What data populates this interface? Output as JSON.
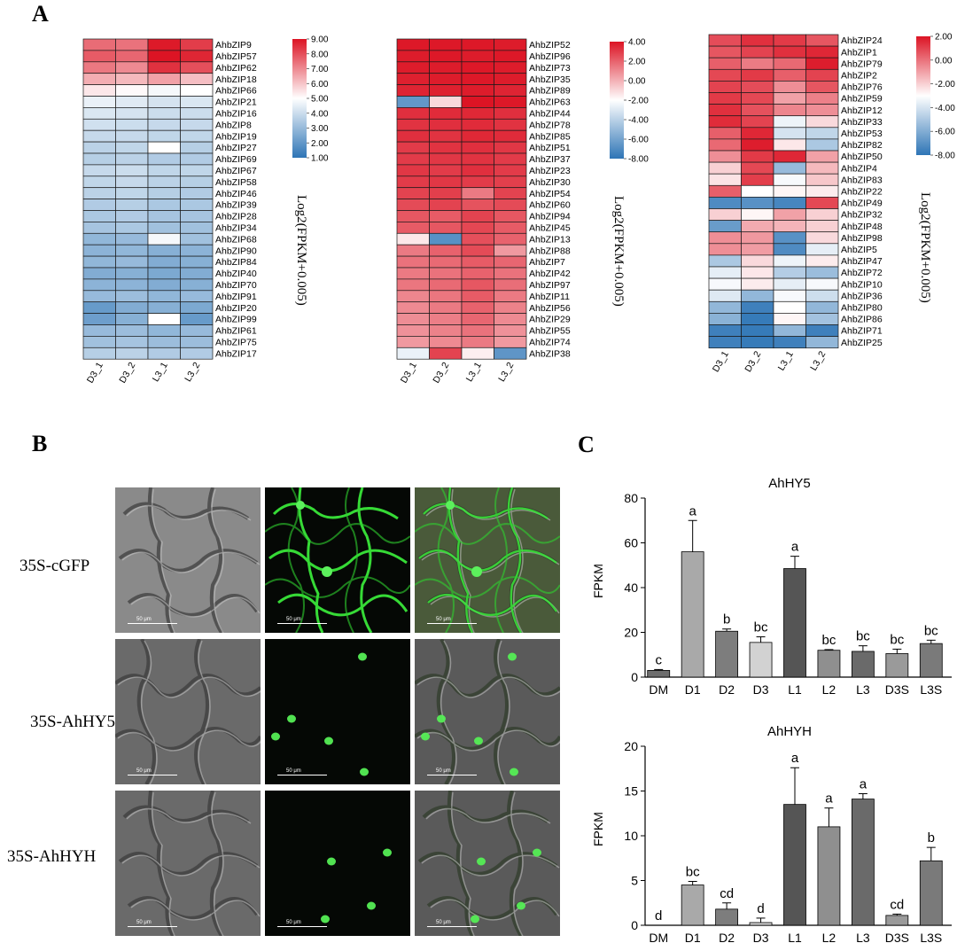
{
  "panels": {
    "a": "A",
    "b": "B",
    "c": "C"
  },
  "heatmap": {
    "samples": [
      "D3_1",
      "D3_2",
      "L3_1",
      "L3_2"
    ],
    "colorbar_title": "Log2(FPKM+0.005)",
    "groups": [
      {
        "genes": [
          "AhbZIP9",
          "AhbZIP57",
          "AhbZIP62",
          "AhbZIP18",
          "AhbZIP66",
          "AhbZIP21",
          "AhbZIP16",
          "AhbZIP8",
          "AhbZIP19",
          "AhbZIP27",
          "AhbZIP69",
          "AhbZIP67",
          "AhbZIP58",
          "AhbZIP46",
          "AhbZIP39",
          "AhbZIP28",
          "AhbZIP34",
          "AhbZIP68",
          "AhbZIP90",
          "AhbZIP84",
          "AhbZIP40",
          "AhbZIP70",
          "AhbZIP91",
          "AhbZIP20",
          "AhbZIP99",
          "AhbZIP61",
          "AhbZIP75",
          "AhbZIP17"
        ],
        "scale_ticks": [
          "9.00",
          "8.00",
          "7.00",
          "6.00",
          "5.00",
          "4.00",
          "3.00",
          "2.00",
          "1.00"
        ],
        "range": [
          1,
          9
        ],
        "values": [
          [
            7.5,
            7.4,
            8.9,
            8.3
          ],
          [
            7.8,
            7.6,
            9.0,
            8.7
          ],
          [
            7.3,
            7.0,
            8.5,
            8.0
          ],
          [
            6.4,
            6.2,
            6.6,
            6.1
          ],
          [
            5.4,
            5.1,
            4.8,
            5.0
          ],
          [
            4.6,
            4.4,
            4.2,
            4.3
          ],
          [
            4.3,
            4.2,
            4.0,
            4.0
          ],
          [
            4.1,
            4.0,
            3.9,
            3.9
          ],
          [
            3.9,
            3.9,
            3.8,
            3.8
          ],
          [
            3.7,
            3.8,
            5.0,
            3.6
          ],
          [
            3.6,
            3.7,
            3.5,
            3.5
          ],
          [
            3.9,
            4.0,
            3.8,
            3.8
          ],
          [
            3.8,
            3.9,
            3.7,
            3.6
          ],
          [
            3.7,
            3.8,
            3.6,
            3.5
          ],
          [
            3.5,
            3.6,
            3.4,
            3.4
          ],
          [
            3.4,
            3.5,
            3.3,
            3.3
          ],
          [
            3.3,
            3.4,
            3.2,
            3.2
          ],
          [
            2.9,
            3.0,
            4.8,
            3.2
          ],
          [
            2.8,
            2.9,
            2.7,
            2.8
          ],
          [
            2.9,
            3.0,
            2.6,
            2.7
          ],
          [
            2.6,
            2.7,
            2.5,
            2.6
          ],
          [
            2.8,
            2.8,
            2.6,
            2.7
          ],
          [
            3.0,
            3.1,
            2.9,
            3.0
          ],
          [
            2.1,
            2.6,
            2.7,
            2.5
          ],
          [
            2.2,
            2.7,
            5.0,
            2.1
          ],
          [
            3.0,
            3.1,
            2.9,
            3.0
          ],
          [
            3.2,
            3.3,
            3.1,
            3.1
          ],
          [
            3.6,
            3.7,
            3.5,
            3.5
          ]
        ]
      },
      {
        "genes": [
          "AhbZIP52",
          "AhbZIP96",
          "AhbZIP73",
          "AhbZIP35",
          "AhbZIP89",
          "AhbZIP63",
          "AhbZIP44",
          "AhbZIP78",
          "AhbZIP85",
          "AhbZIP51",
          "AhbZIP37",
          "AhbZIP23",
          "AhbZIP30",
          "AhbZIP54",
          "AhbZIP60",
          "AhbZIP94",
          "AhbZIP45",
          "AhbZIP13",
          "AhbZIP88",
          "AhbZIP7",
          "AhbZIP42",
          "AhbZIP97",
          "AhbZIP11",
          "AhbZIP56",
          "AhbZIP29",
          "AhbZIP55",
          "AhbZIP74",
          "AhbZIP38"
        ],
        "scale_ticks": [
          "4.00",
          "2.00",
          "0.00",
          "-2.00",
          "-4.00",
          "-6.00",
          "-8.00"
        ],
        "range": [
          -8,
          4
        ],
        "values": [
          [
            3.9,
            3.9,
            3.9,
            3.8
          ],
          [
            3.8,
            3.9,
            3.8,
            3.9
          ],
          [
            3.8,
            3.8,
            3.9,
            3.8
          ],
          [
            3.7,
            3.8,
            3.9,
            3.8
          ],
          [
            3.6,
            3.7,
            3.8,
            3.6
          ],
          [
            -6.5,
            -1.0,
            4.0,
            3.9
          ],
          [
            3.3,
            3.4,
            3.5,
            3.3
          ],
          [
            3.2,
            3.3,
            3.4,
            3.2
          ],
          [
            3.3,
            3.2,
            3.5,
            3.4
          ],
          [
            3.0,
            3.2,
            3.3,
            3.1
          ],
          [
            3.0,
            3.1,
            3.2,
            3.0
          ],
          [
            3.1,
            3.0,
            3.3,
            3.0
          ],
          [
            3.0,
            3.1,
            3.0,
            2.9
          ],
          [
            2.8,
            2.9,
            1.4,
            2.8
          ],
          [
            2.6,
            2.8,
            2.4,
            2.6
          ],
          [
            2.3,
            2.2,
            2.8,
            2.3
          ],
          [
            2.2,
            2.3,
            2.7,
            2.2
          ],
          [
            -1.4,
            -6.8,
            2.5,
            2.0
          ],
          [
            1.4,
            2.0,
            2.6,
            0.6
          ],
          [
            1.6,
            1.8,
            2.2,
            1.9
          ],
          [
            1.4,
            1.6,
            2.0,
            1.6
          ],
          [
            1.5,
            1.8,
            2.3,
            1.7
          ],
          [
            1.1,
            1.5,
            2.2,
            1.4
          ],
          [
            1.0,
            1.4,
            2.0,
            1.2
          ],
          [
            0.9,
            1.3,
            1.9,
            1.0
          ],
          [
            0.8,
            1.2,
            1.6,
            0.8
          ],
          [
            0.6,
            1.0,
            1.4,
            0.6
          ],
          [
            -2.6,
            2.8,
            -1.6,
            -6.6
          ]
        ]
      },
      {
        "genes": [
          "AhbZIP24",
          "AhbZIP1",
          "AhbZIP79",
          "AhbZIP2",
          "AhbZIP76",
          "AhbZIP59",
          "AhbZIP12",
          "AhbZIP33",
          "AhbZIP53",
          "AhbZIP82",
          "AhbZIP50",
          "AhbZIP4",
          "AhbZIP83",
          "AhbZIP22",
          "AhbZIP49",
          "AhbZIP32",
          "AhbZIP48",
          "AhbZIP98",
          "AhbZIP5",
          "AhbZIP47",
          "AhbZIP72",
          "AhbZIP10",
          "AhbZIP36",
          "AhbZIP80",
          "AhbZIP86",
          "AhbZIP71",
          "AhbZIP25"
        ],
        "scale_ticks": [
          "2.00",
          "0.00",
          "-2.00",
          "-4.00",
          "-6.00",
          "-8.00"
        ],
        "range": [
          -8,
          2
        ],
        "values": [
          [
            0.8,
            1.4,
            1.2,
            0.6
          ],
          [
            0.6,
            1.0,
            1.4,
            1.6
          ],
          [
            0.4,
            -0.2,
            0.2,
            1.8
          ],
          [
            0.9,
            1.2,
            0.4,
            1.0
          ],
          [
            1.0,
            0.8,
            -0.6,
            0.6
          ],
          [
            1.2,
            0.9,
            -1.0,
            -0.3
          ],
          [
            1.4,
            0.7,
            -0.4,
            -0.6
          ],
          [
            1.5,
            1.0,
            -3.4,
            -2.2
          ],
          [
            0.4,
            1.6,
            -4.0,
            -4.5
          ],
          [
            0.2,
            1.8,
            -2.5,
            -5.0
          ],
          [
            -0.6,
            1.2,
            1.6,
            -1.0
          ],
          [
            -2.0,
            0.9,
            -5.5,
            -1.5
          ],
          [
            -2.4,
            1.1,
            -3.2,
            -1.8
          ],
          [
            0.4,
            -3.0,
            -2.8,
            -2.6
          ],
          [
            -7.2,
            -7.0,
            -7.4,
            0.9
          ],
          [
            -2.0,
            -2.8,
            -1.0,
            -2.0
          ],
          [
            -6.6,
            -1.2,
            -1.4,
            -2.0
          ],
          [
            -0.6,
            -0.8,
            -7.0,
            -2.2
          ],
          [
            -0.6,
            -0.9,
            -7.2,
            -3.6
          ],
          [
            -5.0,
            -2.2,
            -3.4,
            -2.6
          ],
          [
            -3.6,
            -2.5,
            -4.8,
            -5.4
          ],
          [
            -3.2,
            -2.6,
            -3.6,
            -3.2
          ],
          [
            -3.8,
            -5.6,
            -3.2,
            -4.2
          ],
          [
            -5.6,
            -7.6,
            -3.0,
            -5.6
          ],
          [
            -5.8,
            -7.8,
            -2.8,
            -5.2
          ],
          [
            -7.6,
            -7.8,
            -5.6,
            -7.6
          ],
          [
            -7.6,
            -7.8,
            -7.6,
            -5.6
          ]
        ]
      }
    ]
  },
  "micrographs": {
    "rows": [
      "35S-cGFP",
      "35S-AhHY5",
      "35S-AhHYH"
    ],
    "scale_label": "50 μm"
  },
  "chart_data": [
    {
      "type": "bar",
      "title": "AhHY5",
      "ylabel": "FPKM",
      "categories": [
        "DM",
        "D1",
        "D2",
        "D3",
        "L1",
        "L2",
        "L3",
        "D3S",
        "L3S"
      ],
      "values": [
        3,
        56,
        20.5,
        15.5,
        48.5,
        12,
        11.5,
        10.5,
        15
      ],
      "errors": [
        0.4,
        14,
        1,
        2.5,
        5.5,
        0.3,
        2.5,
        2,
        1.5
      ],
      "letters": [
        "c",
        "a",
        "b",
        "bc",
        "a",
        "bc",
        "bc",
        "bc",
        "bc"
      ],
      "bar_colors": [
        "#6e6e6e",
        "#a9a9a9",
        "#7d7d7d",
        "#d2d2d2",
        "#555555",
        "#8f8f8f",
        "#6a6a6a",
        "#9a9a9a",
        "#7a7a7a"
      ],
      "ylim": [
        0,
        80
      ],
      "yticks": [
        0,
        20,
        40,
        60,
        80
      ]
    },
    {
      "type": "bar",
      "title": "AhHYH",
      "ylabel": "FPKM",
      "categories": [
        "DM",
        "D1",
        "D2",
        "D3",
        "L1",
        "L2",
        "L3",
        "D3S",
        "L3S"
      ],
      "values": [
        0,
        4.5,
        1.8,
        0.3,
        13.5,
        11,
        14.1,
        1.1,
        7.2
      ],
      "errors": [
        0,
        0.4,
        0.7,
        0.5,
        4.1,
        2.1,
        0.6,
        0.15,
        1.5
      ],
      "letters": [
        "d",
        "bc",
        "cd",
        "d",
        "a",
        "a",
        "a",
        "cd",
        "b"
      ],
      "bar_colors": [
        "#6e6e6e",
        "#a9a9a9",
        "#7d7d7d",
        "#d2d2d2",
        "#555555",
        "#8f8f8f",
        "#6a6a6a",
        "#9a9a9a",
        "#7a7a7a"
      ],
      "ylim": [
        0,
        20
      ],
      "yticks": [
        0,
        5,
        10,
        15,
        20
      ]
    }
  ]
}
